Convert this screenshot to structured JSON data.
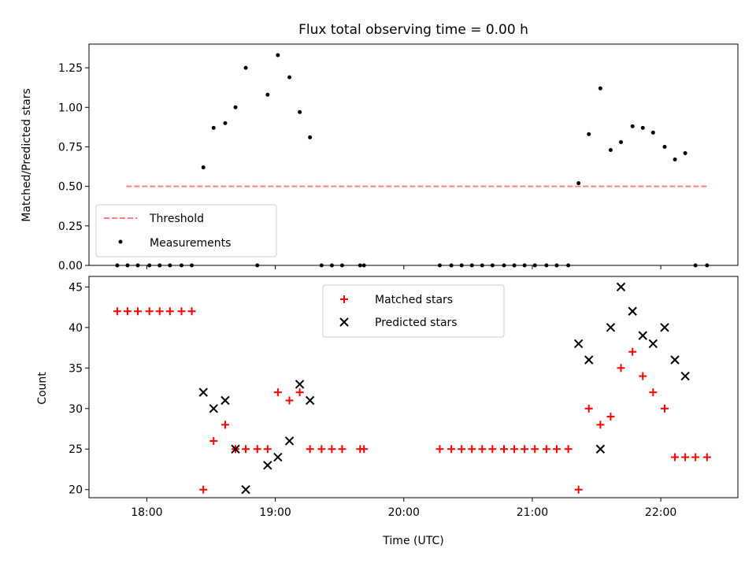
{
  "chart_data": [
    {
      "type": "scatter",
      "title": "Flux total observing time = 0.00 h",
      "ylabel": "Matched/Predicted stars",
      "xlabel": "",
      "ylim": [
        0,
        1.4
      ],
      "yticks": [
        "0.00",
        "0.25",
        "0.50",
        "0.75",
        "1.00",
        "1.25"
      ],
      "grid": false,
      "legend_position": "lower-left",
      "series": [
        {
          "name": "Threshold",
          "kind": "dashed-line",
          "color": "#ff7f7f",
          "x": [
            17.84,
            22.36
          ],
          "y": [
            0.5,
            0.5
          ]
        },
        {
          "name": "Measurements",
          "kind": "points",
          "color": "#000000",
          "x": [
            17.77,
            17.85,
            17.93,
            18.02,
            18.1,
            18.18,
            18.27,
            18.35,
            18.44,
            18.52,
            18.61,
            18.69,
            18.77,
            18.86,
            18.94,
            19.02,
            19.11,
            19.19,
            19.27,
            19.36,
            19.44,
            19.52,
            19.66,
            19.69,
            20.28,
            20.37,
            20.45,
            20.53,
            20.61,
            20.69,
            20.78,
            20.86,
            20.94,
            21.02,
            21.11,
            21.19,
            21.28,
            21.36,
            21.44,
            21.53,
            21.61,
            21.69,
            21.78,
            21.86,
            21.94,
            22.03,
            22.11,
            22.19,
            22.27,
            22.36
          ],
          "y": [
            0,
            0,
            0,
            0,
            0,
            0,
            0,
            0,
            0.62,
            0.87,
            0.9,
            1.0,
            1.25,
            0,
            1.08,
            1.33,
            1.19,
            0.97,
            0.81,
            0,
            0,
            0,
            0,
            0,
            0,
            0,
            0,
            0,
            0,
            0,
            0,
            0,
            0,
            0,
            0,
            0,
            0,
            0.52,
            0.83,
            1.12,
            0.73,
            0.78,
            0.88,
            0.87,
            0.84,
            0.75,
            0.67,
            0.71,
            0,
            0
          ]
        }
      ]
    },
    {
      "type": "scatter",
      "title": "",
      "ylabel": "Count",
      "xlabel": "Time (UTC)",
      "ylim": [
        19,
        46.3
      ],
      "yticks": [
        "20",
        "25",
        "30",
        "35",
        "40",
        "45"
      ],
      "xticks": [
        "18:00",
        "19:00",
        "20:00",
        "21:00",
        "22:00"
      ],
      "xlim": [
        17.55,
        22.6
      ],
      "grid": false,
      "legend_position": "top-center",
      "series": [
        {
          "name": "Matched stars",
          "marker": "plus",
          "color": "#ff0000",
          "x": [
            17.77,
            17.85,
            17.93,
            18.02,
            18.1,
            18.18,
            18.27,
            18.35,
            18.44,
            18.52,
            18.61,
            18.69,
            18.77,
            18.86,
            18.94,
            19.02,
            19.11,
            19.19,
            19.27,
            19.36,
            19.44,
            19.52,
            19.66,
            19.69,
            20.28,
            20.37,
            20.45,
            20.53,
            20.61,
            20.69,
            20.78,
            20.86,
            20.94,
            21.02,
            21.11,
            21.19,
            21.28,
            21.36,
            21.44,
            21.53,
            21.61,
            21.69,
            21.78,
            21.86,
            21.94,
            22.03,
            22.11,
            22.19,
            22.27,
            22.36
          ],
          "y": [
            42,
            42,
            42,
            42,
            42,
            42,
            42,
            42,
            20,
            26,
            28,
            25,
            25,
            25,
            25,
            32,
            31,
            32,
            25,
            25,
            25,
            25,
            25,
            25,
            25,
            25,
            25,
            25,
            25,
            25,
            25,
            25,
            25,
            25,
            25,
            25,
            25,
            20,
            30,
            28,
            29,
            35,
            37,
            34,
            32,
            30,
            24,
            24,
            24,
            24
          ]
        },
        {
          "name": "Predicted stars",
          "marker": "x",
          "color": "#000000",
          "x": [
            18.44,
            18.52,
            18.61,
            18.69,
            18.77,
            18.94,
            19.02,
            19.11,
            19.19,
            19.27,
            21.36,
            21.44,
            21.53,
            21.61,
            21.69,
            21.78,
            21.86,
            21.94,
            22.03,
            22.11,
            22.19
          ],
          "y": [
            32,
            30,
            31,
            25,
            20,
            23,
            24,
            26,
            33,
            31,
            38,
            36,
            25,
            40,
            45,
            42,
            39,
            38,
            40,
            36,
            34
          ]
        }
      ]
    }
  ]
}
